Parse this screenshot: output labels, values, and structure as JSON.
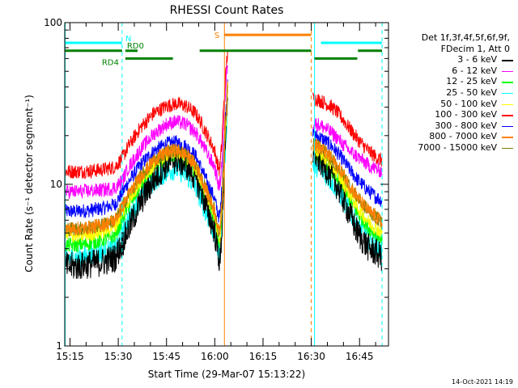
{
  "chart_data": {
    "type": "line",
    "title": "RHESSI Count Rates",
    "xlabel": "Start Time (29-Mar-07 15:13:22)",
    "ylabel": "Count Rate (s⁻¹ detector segment⁻¹)",
    "yscale": "log",
    "ylim": [
      1,
      100
    ],
    "y_ticks": [
      "1",
      "10",
      "100"
    ],
    "x_ticks": [
      "15:15",
      "15:30",
      "15:45",
      "16:00",
      "16:15",
      "16:30",
      "16:45"
    ],
    "x_tick_minutes": [
      15.0,
      30.0,
      45.0,
      60.0,
      75.0,
      90.0,
      105.0
    ],
    "xlim_minutes": [
      13.37,
      114.0
    ],
    "legend_header": [
      "Det 1f,3f,4f,5f,6f,9f,",
      "FDecim 1, Att 0"
    ],
    "x_minutes": [
      13.5,
      17,
      21,
      25,
      29,
      31.2,
      33,
      37,
      41,
      45,
      48,
      51,
      54,
      56,
      58,
      59.8,
      60.5,
      61.0,
      61.4,
      61.7,
      62.1,
      62.3,
      62.5,
      62.9,
      63.3,
      63.7,
      64.0
    ],
    "gap_minutes": [
      64.0,
      90.5
    ],
    "x2_minutes": [
      90.5,
      92,
      94,
      96,
      98,
      100,
      102,
      104,
      106,
      108,
      110,
      112
    ],
    "series": [
      {
        "name": "3 - 6 keV",
        "color": "#000000",
        "values": [
          3.1,
          3.1,
          3.2,
          3.3,
          3.5,
          4.3,
          5.2,
          7.8,
          10.6,
          13.4,
          14.2,
          13.2,
          11.0,
          8.8,
          6.6,
          5.2,
          4.4,
          3.8,
          3.4,
          3.3,
          4.8,
          5.5,
          7.8,
          11.0,
          17.0,
          26.0,
          38.0
        ],
        "values2": [
          15.5,
          14.5,
          13.0,
          11.5,
          9.8,
          8.0,
          6.5,
          5.2,
          4.5,
          4.0,
          3.8,
          3.5
        ]
      },
      {
        "name": "6 - 12 keV",
        "color": "#ff00ff",
        "values": [
          9.0,
          9.0,
          9.1,
          9.2,
          9.5,
          10.5,
          12.5,
          16.5,
          20.5,
          23.5,
          24.5,
          23.5,
          21.0,
          18.0,
          15.0,
          13.0,
          11.5,
          10.2,
          9.5,
          10.5,
          13.0,
          14.5,
          19.0,
          27.0,
          38.0,
          50.0,
          58.0
        ],
        "values2": [
          24.0,
          23.5,
          22.5,
          21.0,
          19.5,
          17.5,
          16.0,
          15.0,
          14.0,
          13.0,
          12.5,
          12.0
        ]
      },
      {
        "name": "12 - 25 keV",
        "color": "#00ff00",
        "values": [
          4.2,
          4.2,
          4.3,
          4.5,
          4.8,
          6.0,
          7.2,
          9.8,
          12.5,
          14.5,
          15.0,
          14.0,
          11.8,
          9.5,
          7.5,
          6.0,
          5.2,
          4.6,
          4.2,
          4.5,
          6.2,
          7.0,
          9.5,
          13.5,
          20.0,
          28.0,
          40.0
        ],
        "values2": [
          16.0,
          15.0,
          13.8,
          12.5,
          11.0,
          9.5,
          8.0,
          6.8,
          6.0,
          5.3,
          5.0,
          4.6
        ]
      },
      {
        "name": "25 - 50 keV",
        "color": "#00ffff",
        "values": [
          3.5,
          3.5,
          3.6,
          3.8,
          4.0,
          5.0,
          6.0,
          8.3,
          10.5,
          12.0,
          12.5,
          11.5,
          9.7,
          7.8,
          6.2,
          5.0,
          4.4,
          3.9,
          3.6,
          3.8,
          5.3,
          6.0,
          8.0,
          11.5,
          17.0,
          24.0,
          35.0
        ],
        "values2": [
          13.5,
          12.8,
          11.8,
          10.6,
          9.3,
          8.0,
          6.8,
          5.8,
          5.1,
          4.6,
          4.2,
          3.9
        ]
      },
      {
        "name": "50 - 100 keV",
        "color": "#ffff00",
        "values": [
          4.8,
          4.8,
          4.9,
          5.1,
          5.5,
          6.6,
          7.8,
          10.5,
          13.3,
          15.5,
          16.0,
          15.0,
          12.8,
          10.3,
          8.1,
          6.6,
          5.7,
          5.0,
          4.6,
          4.9,
          6.7,
          7.6,
          10.2,
          14.5,
          21.0,
          30.0,
          42.0
        ],
        "values2": [
          17.0,
          16.0,
          14.8,
          13.4,
          11.8,
          10.2,
          8.7,
          7.4,
          6.5,
          5.8,
          5.4,
          5.0
        ]
      },
      {
        "name": "100 - 300 keV",
        "color": "#ff0000",
        "values": [
          12.0,
          12.0,
          12.1,
          12.3,
          12.8,
          14.5,
          17.0,
          22.5,
          27.5,
          30.5,
          31.5,
          30.5,
          27.5,
          23.5,
          19.5,
          16.5,
          14.5,
          13.0,
          12.3,
          13.5,
          17.0,
          19.0,
          25.0,
          33.0,
          45.0,
          58.0,
          66.0
        ],
        "values2": [
          34.0,
          33.5,
          32.0,
          30.5,
          28.0,
          25.0,
          22.0,
          19.5,
          17.5,
          16.0,
          14.8,
          14.0
        ]
      },
      {
        "name": "300 - 800 keV",
        "color": "#0000ff",
        "values": [
          6.8,
          6.8,
          6.9,
          7.1,
          7.5,
          8.8,
          10.2,
          13.3,
          16.0,
          17.8,
          18.2,
          17.2,
          15.0,
          12.3,
          9.9,
          8.3,
          7.3,
          6.6,
          6.2,
          6.7,
          8.8,
          9.8,
          13.0,
          18.0,
          26.0,
          36.0,
          48.0
        ],
        "values2": [
          20.5,
          19.8,
          18.8,
          17.5,
          15.8,
          14.0,
          12.3,
          10.9,
          9.9,
          9.0,
          8.4,
          7.9
        ]
      },
      {
        "name": "800 - 7000 keV",
        "color": "#ff8000",
        "values": [
          5.3,
          5.3,
          5.4,
          5.6,
          6.0,
          7.2,
          8.5,
          11.2,
          14.0,
          15.8,
          16.3,
          15.3,
          13.2,
          10.7,
          8.5,
          7.0,
          6.1,
          5.4,
          5.0,
          5.4,
          7.3,
          8.2,
          11.0,
          15.5,
          22.5,
          31.0,
          43.0
        ],
        "values2": [
          18.0,
          17.2,
          16.0,
          14.6,
          13.0,
          11.4,
          9.8,
          8.5,
          7.5,
          6.8,
          6.3,
          5.8
        ]
      },
      {
        "name": "7000 - 15000 keV",
        "color": "#808000",
        "values": [
          5.3,
          5.3,
          5.4,
          5.6,
          6.0,
          7.2,
          8.5,
          11.2,
          14.0,
          15.8,
          16.3,
          15.3,
          13.2,
          10.7,
          8.5,
          7.0,
          6.1,
          5.4,
          5.0,
          5.4,
          7.3,
          8.2,
          11.0,
          15.5,
          22.5,
          31.0,
          43.0
        ],
        "values2": [
          18.0,
          17.2,
          16.0,
          14.6,
          13.0,
          11.4,
          9.8,
          8.5,
          7.5,
          6.8,
          6.3,
          5.8
        ]
      }
    ],
    "state_bars": [
      {
        "label": "N",
        "color": "#00ffff",
        "y": 75,
        "segments": [
          [
            13.4,
            31.2
          ],
          [
            93.0,
            112.0
          ]
        ]
      },
      {
        "label": "RD0",
        "color": "#008000",
        "y": 67,
        "segments": [
          [
            13.4,
            31.2
          ],
          [
            32.2,
            36.0
          ],
          [
            55.3,
            90.0
          ],
          [
            104.5,
            112.0
          ]
        ]
      },
      {
        "label": "RD4",
        "color": "#008000",
        "y": 60,
        "segments": [
          [
            32.2,
            47.0
          ],
          [
            91.0,
            104.3
          ]
        ]
      },
      {
        "label": "S",
        "color": "#ff8000",
        "y": 84,
        "segments": [
          [
            63.0,
            90.0
          ]
        ]
      }
    ],
    "vlines": [
      {
        "x": 13.5,
        "color": "#00ffff",
        "style": "solid"
      },
      {
        "x": 31.2,
        "color": "#00ffff",
        "style": "dashed"
      },
      {
        "x": 63.0,
        "color": "#ff8000",
        "style": "solid"
      },
      {
        "x": 90.0,
        "color": "#ff8000",
        "style": "dashed"
      },
      {
        "x": 91.0,
        "color": "#00ffff",
        "style": "solid"
      },
      {
        "x": 112.0,
        "color": "#00ffff",
        "style": "dashed"
      }
    ],
    "grid": false,
    "legend_position": "right"
  },
  "timestamp": "14-Oct-2021 14:19"
}
